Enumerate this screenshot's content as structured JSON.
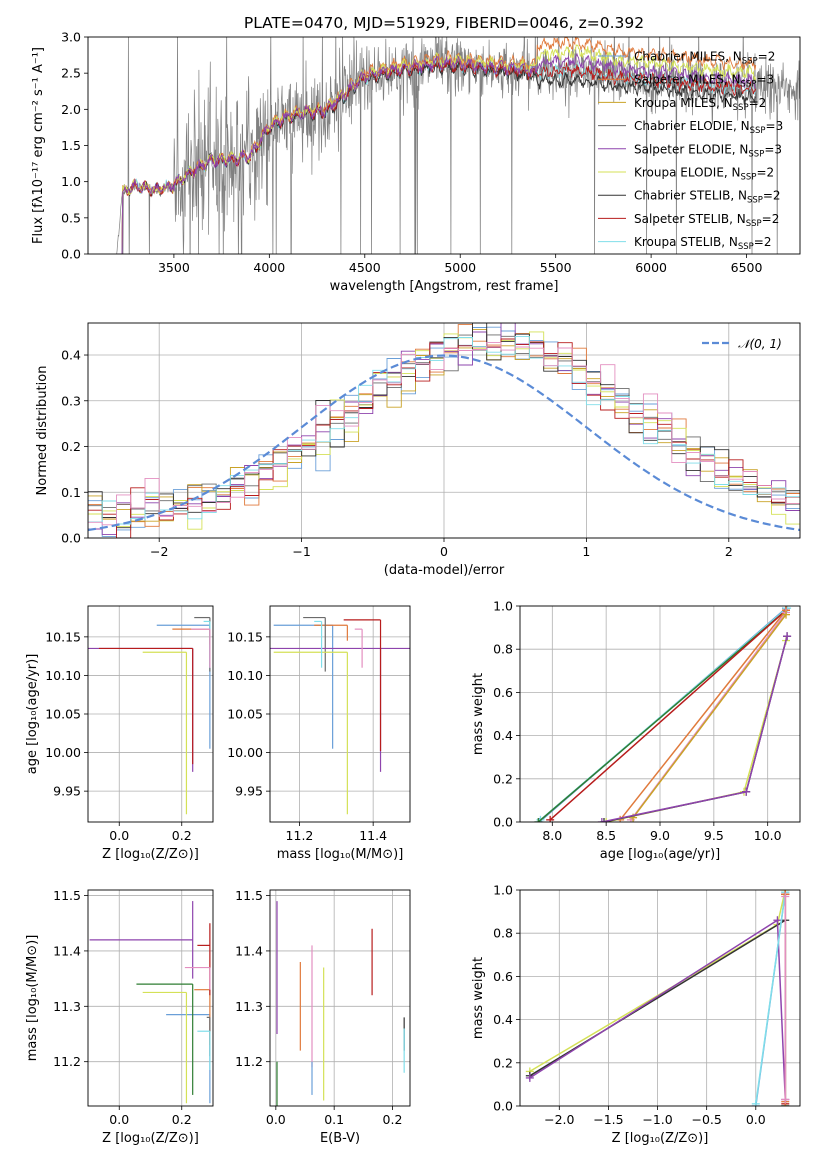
{
  "colors": {
    "chabrier_miles": "#6a9fd8",
    "salpeter_miles": "#e07a3c",
    "kroupa_miles": "#c9a227",
    "chabrier_elodie": "#6b6b6b",
    "salpeter_elodie": "#8e44ad",
    "kroupa_elodie": "#d4e157",
    "chabrier_stelib": "#333333",
    "salpeter_stelib": "#b71c1c",
    "kroupa_stelib": "#80deea",
    "pink": "#e38fc0",
    "green": "#2e7d32",
    "teal": "#00897b",
    "data": "#808080",
    "normal": "#5b8bd6"
  },
  "chart_data": [
    {
      "id": "spectrum",
      "type": "line",
      "title": "PLATE=0470, MJD=51929, FIBERID=0046, z=0.392",
      "xlabel": "wavelength [Angstrom, rest frame]",
      "ylabel": "Flux [fλ10⁻¹⁷ erg cm⁻² s⁻¹ A⁻¹]",
      "xlim": [
        3050,
        6780
      ],
      "ylim": [
        0,
        3.0
      ],
      "xticks": [
        "3500",
        "4000",
        "4500",
        "5000",
        "5500",
        "6000",
        "6500"
      ],
      "yticks": [
        "0.0",
        "0.5",
        "1.0",
        "1.5",
        "2.0",
        "2.5",
        "3.0"
      ],
      "grid": false,
      "legend": "top-right",
      "legend_entries": [
        "Chabrier MILES, N_SSP=2",
        "Salpeter MILES, N_SSP=3",
        "Kroupa MILES, N_SSP=2",
        "Chabrier ELODIE, N_SSP=3",
        "Salpeter ELODIE, N_SSP=3",
        "Kroupa ELODIE, N_SSP=2",
        "Chabrier STELIB, N_SSP=2",
        "Salpeter STELIB, N_SSP=2",
        "Kroupa STELIB, N_SSP=2"
      ],
      "continuum_knots": [
        [
          3200,
          0.0
        ],
        [
          3230,
          0.85
        ],
        [
          3300,
          0.95
        ],
        [
          3400,
          0.88
        ],
        [
          3500,
          0.95
        ],
        [
          3600,
          1.15
        ],
        [
          3700,
          1.3
        ],
        [
          3800,
          1.3
        ],
        [
          3900,
          1.35
        ],
        [
          4000,
          1.75
        ],
        [
          4100,
          1.9
        ],
        [
          4200,
          1.95
        ],
        [
          4300,
          1.98
        ],
        [
          4400,
          2.2
        ],
        [
          4500,
          2.45
        ],
        [
          4600,
          2.5
        ],
        [
          4700,
          2.55
        ],
        [
          4800,
          2.58
        ],
        [
          4900,
          2.62
        ],
        [
          5000,
          2.6
        ],
        [
          5200,
          2.55
        ],
        [
          5400,
          2.5
        ],
        [
          5600,
          2.55
        ],
        [
          5800,
          2.45
        ],
        [
          6000,
          2.4
        ],
        [
          6200,
          2.35
        ],
        [
          6400,
          2.3
        ],
        [
          6550,
          2.28
        ]
      ],
      "model_range": [
        3200,
        6550
      ]
    },
    {
      "id": "residuals",
      "type": "histogram",
      "xlabel": "(data-model)/error",
      "ylabel": "Normed distribution",
      "xlim": [
        -2.5,
        2.5
      ],
      "ylim": [
        0,
        0.47
      ],
      "xticks": [
        "−2",
        "−1",
        "0",
        "1",
        "2"
      ],
      "yticks": [
        "0.0",
        "0.1",
        "0.2",
        "0.3",
        "0.4"
      ],
      "grid": true,
      "legend": "top-right",
      "legend_label": "𝒩(0, 1)",
      "bin_width": 0.1,
      "bin_start": -2.5,
      "bins": 50
    },
    {
      "id": "age_vs_Z",
      "type": "errorbar",
      "xlabel": "Z [log₁₀(Z/Z⊙)]",
      "ylabel": "age  [log₁₀(age/yr)]",
      "xlim": [
        -0.1,
        0.3
      ],
      "ylim": [
        9.91,
        10.19
      ],
      "xticks": [
        "0.0",
        "0.2"
      ],
      "yticks": [
        "9.95",
        "10.00",
        "10.05",
        "10.10",
        "10.15"
      ],
      "grid": true,
      "points": [
        {
          "x": 0.29,
          "y": 10.165,
          "xerr": [
            0.17,
            0.0
          ],
          "yerr": [
            0.16,
            0.0
          ],
          "color": "#6a9fd8"
        },
        {
          "x": 0.29,
          "y": 10.16,
          "xerr": [
            0.12,
            0.0
          ],
          "yerr": [
            0.02,
            0.0
          ],
          "color": "#e07a3c"
        },
        {
          "x": 0.29,
          "y": 10.175,
          "xerr": [
            0.05,
            0.0
          ],
          "yerr": [
            0.07,
            0.0
          ],
          "color": "#6b6b6b"
        },
        {
          "x": 0.235,
          "y": 10.135,
          "xerr": [
            0.34,
            0.0
          ],
          "yerr": [
            0.16,
            0.0
          ],
          "color": "#8e44ad"
        },
        {
          "x": 0.215,
          "y": 10.13,
          "xerr": [
            0.14,
            0.0
          ],
          "yerr": [
            0.21,
            0.0
          ],
          "color": "#d4e157"
        },
        {
          "x": 0.235,
          "y": 10.135,
          "xerr": [
            0.3,
            0.0
          ],
          "yerr": [
            0.15,
            0.0
          ],
          "color": "#b71c1c"
        },
        {
          "x": 0.29,
          "y": 10.17,
          "xerr": [
            0.02,
            0.0
          ],
          "yerr": [
            0.06,
            0.0
          ],
          "color": "#80deea"
        },
        {
          "x": 0.29,
          "y": 10.16,
          "xerr": [
            0.06,
            0.0
          ],
          "yerr": [
            0.05,
            0.0
          ],
          "color": "#e38fc0"
        }
      ]
    },
    {
      "id": "age_vs_mass",
      "type": "errorbar",
      "xlabel": "mass [log₁₀(M/M⊙)]",
      "xlim": [
        11.12,
        11.5
      ],
      "ylim": [
        9.91,
        10.19
      ],
      "xticks": [
        "11.2",
        "11.4"
      ],
      "yticks": [
        "9.95",
        "10.00",
        "10.05",
        "10.10",
        "10.15"
      ],
      "grid": true,
      "points": [
        {
          "x": 11.29,
          "y": 10.165,
          "xerr": [
            0.16,
            0.0
          ],
          "yerr": [
            0.16,
            0.0
          ],
          "color": "#6a9fd8"
        },
        {
          "x": 11.33,
          "y": 10.165,
          "xerr": [
            0.09,
            0.0
          ],
          "yerr": [
            0.02,
            0.0
          ],
          "color": "#e07a3c"
        },
        {
          "x": 11.27,
          "y": 10.175,
          "xerr": [
            0.06,
            0.0
          ],
          "yerr": [
            0.07,
            0.0
          ],
          "color": "#6b6b6b"
        },
        {
          "x": 11.42,
          "y": 10.135,
          "xerr": [
            0.3,
            0.08
          ],
          "yerr": [
            0.16,
            0.0
          ],
          "color": "#8e44ad"
        },
        {
          "x": 11.33,
          "y": 10.13,
          "xerr": [
            0.2,
            0.0
          ],
          "yerr": [
            0.21,
            0.0
          ],
          "color": "#d4e157"
        },
        {
          "x": 11.42,
          "y": 10.172,
          "xerr": [
            0.1,
            0.0
          ],
          "yerr": [
            0.17,
            0.0
          ],
          "color": "#b71c1c"
        },
        {
          "x": 11.26,
          "y": 10.17,
          "xerr": [
            0.02,
            0.0
          ],
          "yerr": [
            0.06,
            0.0
          ],
          "color": "#80deea"
        },
        {
          "x": 11.37,
          "y": 10.16,
          "xerr": [
            0.02,
            0.0
          ],
          "yerr": [
            0.05,
            0.0
          ],
          "color": "#e38fc0"
        }
      ]
    },
    {
      "id": "weight_vs_age",
      "type": "line",
      "xlabel": "age  [log₁₀(age/yr)]",
      "ylabel": "mass weight",
      "xlim": [
        7.7,
        10.3
      ],
      "ylim": [
        0,
        1.0
      ],
      "xticks": [
        "8.0",
        "8.5",
        "9.0",
        "9.5",
        "10.0"
      ],
      "yticks": [
        "0.0",
        "0.2",
        "0.4",
        "0.6",
        "0.8",
        "1.0"
      ],
      "grid": true,
      "series": [
        {
          "color": "#6a9fd8",
          "x": [
            7.88,
            10.17
          ],
          "y": [
            0.0,
            0.99
          ]
        },
        {
          "color": "#80deea",
          "x": [
            7.89,
            10.18
          ],
          "y": [
            0.01,
            0.99
          ]
        },
        {
          "color": "#2e7d32",
          "x": [
            7.87,
            10.17
          ],
          "y": [
            0.0,
            0.98
          ]
        },
        {
          "color": "#b71c1c",
          "x": [
            7.98,
            10.17
          ],
          "y": [
            0.01,
            0.98
          ]
        },
        {
          "color": "#e07a3c",
          "x": [
            8.63,
            10.17
          ],
          "y": [
            0.01,
            0.98
          ]
        },
        {
          "color": "#e38fc0",
          "x": [
            8.73,
            10.17
          ],
          "y": [
            0.01,
            0.97
          ]
        },
        {
          "color": "#c9a227",
          "x": [
            8.75,
            10.17
          ],
          "y": [
            0.02,
            0.96
          ]
        },
        {
          "color": "#d4e157",
          "x": [
            8.5,
            9.78,
            10.17
          ],
          "y": [
            0.0,
            0.14,
            0.84
          ]
        },
        {
          "color": "#333333",
          "x": [
            8.48,
            9.8,
            10.18
          ],
          "y": [
            0.0,
            0.14,
            0.86
          ]
        },
        {
          "color": "#8e44ad",
          "x": [
            8.46,
            9.8,
            10.18
          ],
          "y": [
            0.0,
            0.14,
            0.86
          ]
        }
      ]
    },
    {
      "id": "mass_vs_Z",
      "type": "errorbar",
      "xlabel": "Z [log₁₀(Z/Z⊙)]",
      "ylabel": "mass [log₁₀(M/M⊙)]",
      "xlim": [
        -0.1,
        0.3
      ],
      "ylim": [
        11.12,
        11.51
      ],
      "xticks": [
        "0.0",
        "0.2"
      ],
      "yticks": [
        "11.2",
        "11.3",
        "11.4",
        "11.5"
      ],
      "grid": true,
      "points": [
        {
          "x": 0.29,
          "y": 11.285,
          "xerr": [
            0.14,
            0.0
          ],
          "yerr": [
            0.16,
            0.0
          ],
          "color": "#6a9fd8"
        },
        {
          "x": 0.29,
          "y": 11.33,
          "xerr": [
            0.05,
            0.0
          ],
          "yerr": [
            0.1,
            0.0
          ],
          "color": "#e07a3c"
        },
        {
          "x": 0.29,
          "y": 11.28,
          "xerr": [
            0.01,
            0.0
          ],
          "yerr": [
            0.07,
            0.0
          ],
          "color": "#6b6b6b"
        },
        {
          "x": 0.235,
          "y": 11.42,
          "xerr": [
            0.33,
            0.0
          ],
          "yerr": [
            0.07,
            0.07
          ],
          "color": "#8e44ad"
        },
        {
          "x": 0.215,
          "y": 11.325,
          "xerr": [
            0.14,
            0.0
          ],
          "yerr": [
            0.2,
            0.0
          ],
          "color": "#d4e157"
        },
        {
          "x": 0.29,
          "y": 11.41,
          "xerr": [
            0.04,
            0.0
          ],
          "yerr": [
            0.09,
            0.04
          ],
          "color": "#b71c1c"
        },
        {
          "x": 0.29,
          "y": 11.255,
          "xerr": [
            0.04,
            0.0
          ],
          "yerr": [
            0.07,
            0.0
          ],
          "color": "#80deea"
        },
        {
          "x": 0.29,
          "y": 11.37,
          "xerr": [
            0.08,
            0.0
          ],
          "yerr": [
            0.04,
            0.0
          ],
          "color": "#e38fc0"
        },
        {
          "x": 0.235,
          "y": 11.34,
          "xerr": [
            0.18,
            0.0
          ],
          "yerr": [
            0.2,
            0.0
          ],
          "color": "#2e7d32"
        }
      ]
    },
    {
      "id": "mass_vs_EBV",
      "type": "errorbar",
      "xlabel": "E(B-V)",
      "xlim": [
        -0.01,
        0.23
      ],
      "ylim": [
        11.12,
        11.51
      ],
      "xticks": [
        "0.0",
        "0.1",
        "0.2"
      ],
      "yticks": [
        "11.2",
        "11.3",
        "11.4",
        "11.5"
      ],
      "grid": true,
      "points": [
        {
          "x": 0.002,
          "y": 11.37,
          "xerr": [
            0.0,
            0.0
          ],
          "yerr": [
            0.12,
            0.12
          ],
          "color": "#8e44ad"
        },
        {
          "x": 0.002,
          "y": 11.2,
          "xerr": [
            0.0,
            0.0
          ],
          "yerr": [
            0.08,
            0.0
          ],
          "color": "#2e7d32"
        },
        {
          "x": 0.042,
          "y": 11.3,
          "xerr": [
            0.0,
            0.0
          ],
          "yerr": [
            0.08,
            0.08
          ],
          "color": "#e07a3c"
        },
        {
          "x": 0.062,
          "y": 11.3,
          "xerr": [
            0.0,
            0.0
          ],
          "yerr": [
            0.11,
            0.11
          ],
          "color": "#e38fc0"
        },
        {
          "x": 0.062,
          "y": 11.2,
          "xerr": [
            0.0,
            0.0
          ],
          "yerr": [
            0.06,
            0.0
          ],
          "color": "#6a9fd8"
        },
        {
          "x": 0.082,
          "y": 11.25,
          "xerr": [
            0.0,
            0.0
          ],
          "yerr": [
            0.12,
            0.12
          ],
          "color": "#d4e157"
        },
        {
          "x": 0.165,
          "y": 11.38,
          "xerr": [
            0.0,
            0.0
          ],
          "yerr": [
            0.06,
            0.06
          ],
          "color": "#b71c1c"
        },
        {
          "x": 0.22,
          "y": 11.25,
          "xerr": [
            0.0,
            0.0
          ],
          "yerr": [
            0.03,
            0.03
          ],
          "color": "#333333"
        },
        {
          "x": 0.22,
          "y": 11.22,
          "xerr": [
            0.0,
            0.0
          ],
          "yerr": [
            0.04,
            0.04
          ],
          "color": "#80deea"
        }
      ]
    },
    {
      "id": "weight_vs_Z",
      "type": "line",
      "xlabel": "Z [log₁₀(Z/Z⊙)]",
      "ylabel": "mass weight",
      "xlim": [
        -2.4,
        0.45
      ],
      "ylim": [
        0,
        1.0
      ],
      "xticks": [
        "−2.0",
        "−1.5",
        "−1.0",
        "−0.5",
        "0.0"
      ],
      "yticks": [
        "0.0",
        "0.2",
        "0.4",
        "0.6",
        "0.8",
        "1.0"
      ],
      "grid": true,
      "series": [
        {
          "color": "#d4e157",
          "x": [
            -2.3,
            0.22,
            0.3
          ],
          "y": [
            0.16,
            0.84,
            1.0
          ]
        },
        {
          "color": "#333333",
          "x": [
            -2.3,
            0.3,
            0.3
          ],
          "y": [
            0.14,
            0.86,
            0.0
          ]
        },
        {
          "color": "#8e44ad",
          "x": [
            -2.3,
            0.22,
            0.3
          ],
          "y": [
            0.13,
            0.86,
            0.03
          ]
        },
        {
          "color": "#6a9fd8",
          "x": [
            0.0,
            0.3
          ],
          "y": [
            0.0,
            0.99
          ]
        },
        {
          "color": "#80deea",
          "x": [
            0.0,
            0.3
          ],
          "y": [
            0.01,
            0.99
          ]
        },
        {
          "color": "#2e7d32",
          "x": [
            0.3,
            0.3
          ],
          "y": [
            0.0,
            0.98
          ]
        },
        {
          "color": "#b71c1c",
          "x": [
            0.3,
            0.3
          ],
          "y": [
            0.01,
            0.98
          ]
        },
        {
          "color": "#e07a3c",
          "x": [
            0.3,
            0.3
          ],
          "y": [
            0.02,
            0.98
          ]
        },
        {
          "color": "#e38fc0",
          "x": [
            0.3,
            0.3
          ],
          "y": [
            0.03,
            0.97
          ]
        }
      ]
    }
  ]
}
